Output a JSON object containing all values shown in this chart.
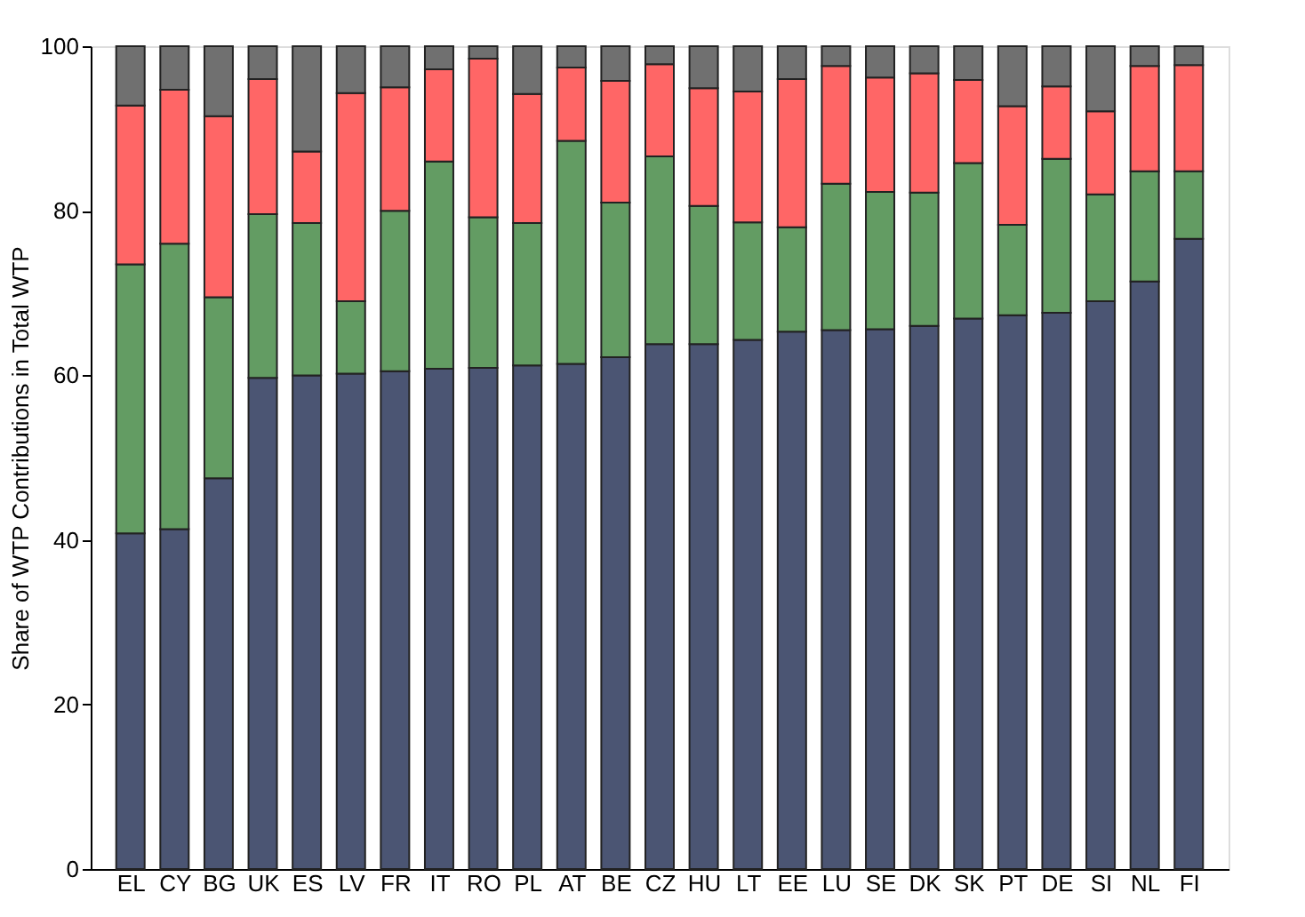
{
  "chart_data": {
    "type": "bar",
    "stacked": true,
    "ylabel": "Share of WTP Contributions in Total WTP",
    "ylim": [
      0,
      100
    ],
    "yticks": [
      0,
      20,
      40,
      60,
      80,
      100
    ],
    "grid": false,
    "legend": false,
    "categories": [
      "EL",
      "CY",
      "BG",
      "UK",
      "ES",
      "LV",
      "FR",
      "IT",
      "RO",
      "PL",
      "AT",
      "BE",
      "CZ",
      "HU",
      "LT",
      "EE",
      "LU",
      "SE",
      "DK",
      "SK",
      "PT",
      "DE",
      "SI",
      "NL",
      "FI"
    ],
    "series": [
      {
        "color": "#4b5573",
        "values": [
          40.8,
          41.3,
          47.5,
          59.7,
          60.0,
          60.2,
          60.5,
          60.8,
          60.9,
          61.2,
          61.4,
          62.2,
          63.8,
          63.8,
          64.3,
          65.3,
          65.5,
          65.6,
          66.0,
          66.9,
          67.3,
          67.6,
          69.0,
          71.4,
          76.6
        ]
      },
      {
        "color": "#639c63",
        "values": [
          32.7,
          34.7,
          22.0,
          19.9,
          18.5,
          8.8,
          19.5,
          25.2,
          18.3,
          17.3,
          27.1,
          18.8,
          22.8,
          16.8,
          14.3,
          12.7,
          17.8,
          16.7,
          16.2,
          18.9,
          11.0,
          18.7,
          13.0,
          13.4,
          8.2
        ]
      },
      {
        "color": "#ff6666",
        "values": [
          19.3,
          18.7,
          22.0,
          16.4,
          8.7,
          25.3,
          15.0,
          11.2,
          19.3,
          15.7,
          8.9,
          14.8,
          11.2,
          14.3,
          15.9,
          18.0,
          14.3,
          13.9,
          14.5,
          10.1,
          14.4,
          8.8,
          10.1,
          12.8,
          12.9
        ]
      },
      {
        "color": "#707070",
        "values": [
          7.2,
          5.3,
          8.5,
          4.0,
          12.8,
          5.7,
          5.0,
          2.8,
          1.5,
          5.8,
          2.6,
          4.2,
          2.2,
          5.1,
          5.5,
          4.0,
          2.4,
          3.8,
          3.3,
          4.1,
          7.3,
          4.9,
          7.9,
          2.4,
          2.3
        ]
      }
    ]
  }
}
